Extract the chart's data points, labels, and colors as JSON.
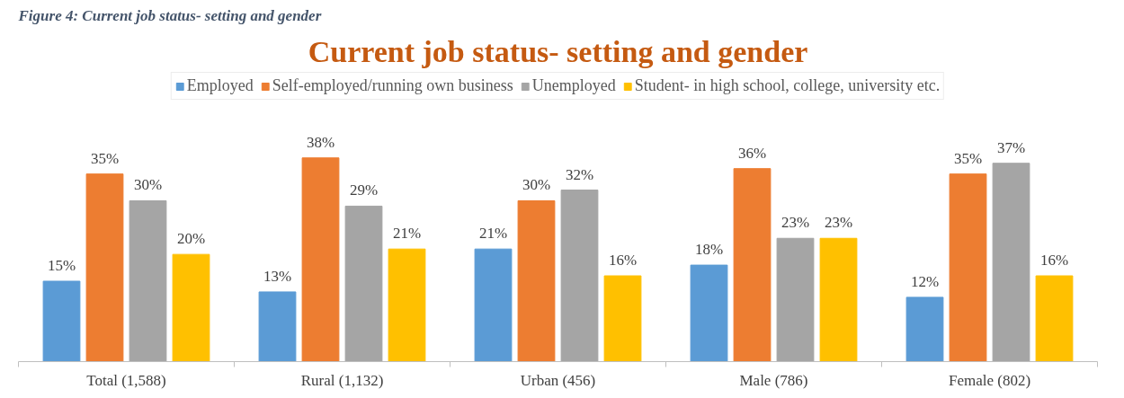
{
  "chart_data": {
    "type": "bar",
    "title": "Current job status- setting and gender",
    "annotations": [
      "Figure 4: Current job status- setting and gender"
    ],
    "categories": [
      "Total (1,588)",
      "Rural (1,132)",
      "Urban (456)",
      "Male (786)",
      "Female (802)"
    ],
    "series": [
      {
        "name": "Employed",
        "color": "#5b9bd5",
        "values": [
          15,
          13,
          21,
          18,
          12
        ],
        "value_labels": [
          "15%",
          "13%",
          "21%",
          "18%",
          "12%"
        ]
      },
      {
        "name": "Self-employed/running own business",
        "color": "#ed7d31",
        "values": [
          35,
          38,
          30,
          36,
          35
        ],
        "value_labels": [
          "35%",
          "38%",
          "30%",
          "36%",
          "35%"
        ]
      },
      {
        "name": "Unemployed",
        "color": "#a5a5a5",
        "values": [
          30,
          29,
          32,
          23,
          37
        ],
        "value_labels": [
          "30%",
          "29%",
          "32%",
          "23%",
          "37%"
        ]
      },
      {
        "name": "Student- in high school, college, university etc.",
        "color": "#ffc000",
        "values": [
          20,
          21,
          16,
          23,
          16
        ],
        "value_labels": [
          "20%",
          "21%",
          "16%",
          "23%",
          "16%"
        ]
      }
    ],
    "legend": "top",
    "grid": false
  }
}
